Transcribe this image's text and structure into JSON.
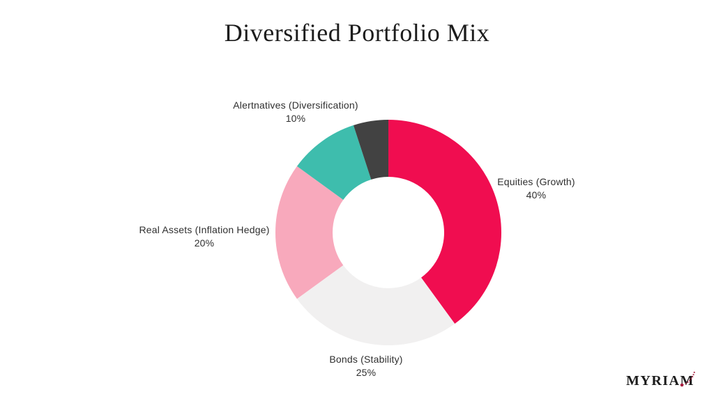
{
  "title": "Diversified Portfolio Mix",
  "chart_data": {
    "type": "pie",
    "donut": true,
    "title": "Diversified Portfolio Mix",
    "start_angle_deg": 0,
    "direction": "clockwise",
    "inner_radius_ratio": 0.494,
    "legend": "none",
    "segments": [
      {
        "label": "Equities (Growth)",
        "value": 40,
        "pct_label": "40%",
        "color": "#F00D50"
      },
      {
        "label": "Bonds (Stability)",
        "value": 25,
        "pct_label": "25%",
        "color": "#F1F0F0"
      },
      {
        "label": "Real Assets (Inflation Hedge)",
        "value": 20,
        "pct_label": "20%",
        "color": "#F8A9BC"
      },
      {
        "label": "Alertnatives (Diversification)",
        "value": 10,
        "pct_label": "10%",
        "color": "#3EBDAD"
      },
      {
        "label": "",
        "value": 5,
        "pct_label": "",
        "color": "#424242"
      }
    ],
    "label_color": "#2f2f2f"
  },
  "logo": {
    "text": "MYRIAM",
    "accent_color": "#A81E3F"
  }
}
